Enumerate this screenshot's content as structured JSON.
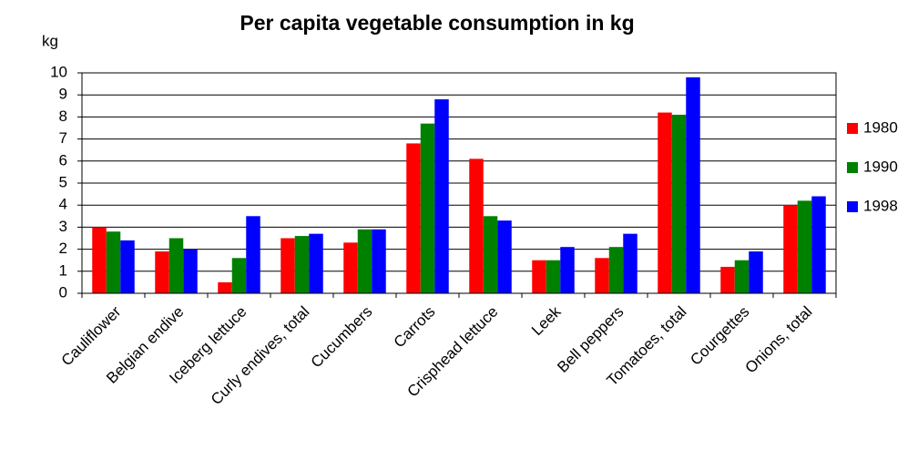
{
  "chart_data": {
    "type": "bar",
    "title": "Per capita vegetable consumption in kg",
    "y_label": "kg",
    "categories": [
      "Cauliflower",
      "Belgian endive",
      "Iceberg lettuce",
      "Curly endives, total",
      "Cucumbers",
      "Carrots",
      "Crisphead lettuce",
      "Leek",
      "Bell peppers",
      "Tomatoes, total",
      "Courgettes",
      "Onions, total"
    ],
    "series": [
      {
        "name": "1980",
        "color": "#ff0000",
        "values": [
          3.0,
          1.9,
          0.5,
          2.5,
          2.3,
          6.8,
          6.1,
          1.5,
          1.6,
          8.2,
          1.2,
          4.0
        ]
      },
      {
        "name": "1990",
        "color": "#008000",
        "values": [
          2.8,
          2.5,
          1.6,
          2.6,
          2.9,
          7.7,
          3.5,
          1.5,
          2.1,
          8.1,
          1.5,
          4.2
        ]
      },
      {
        "name": "1998",
        "color": "#0000ff",
        "values": [
          2.4,
          2.0,
          3.5,
          2.7,
          2.9,
          8.8,
          3.3,
          2.1,
          2.7,
          9.8,
          1.9,
          4.4
        ]
      }
    ],
    "ylim": [
      0,
      10
    ],
    "yticks": [
      0,
      1,
      2,
      3,
      4,
      5,
      6,
      7,
      8,
      9,
      10
    ],
    "grid": true,
    "legend": "right"
  }
}
